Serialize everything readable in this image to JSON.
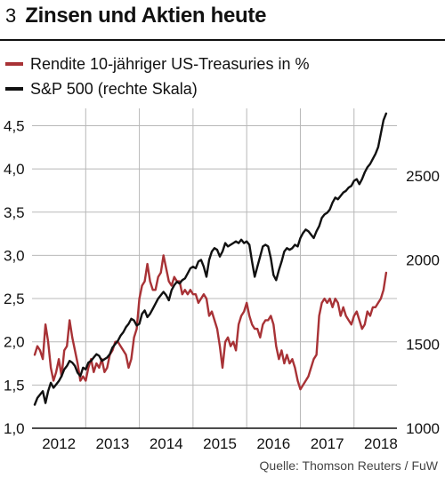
{
  "header": {
    "number": "3",
    "title": "Zinsen und Aktien heute"
  },
  "colors": {
    "yield": "#a83236",
    "sp500": "#111111",
    "grid": "#b8b8b8"
  },
  "source": "Quelle: Thomson Reuters / FuW",
  "chart_data": {
    "type": "line",
    "grid": true,
    "legend_placement": "top-left",
    "left_axis": {
      "min": 1.0,
      "max": 4.7,
      "ticks": [
        "1,0",
        "1,5",
        "2,0",
        "2,5",
        "3,0",
        "3,5",
        "4,0",
        "4,5"
      ],
      "tick_values": [
        1.0,
        1.5,
        2.0,
        2.5,
        3.0,
        3.5,
        4.0,
        4.5
      ]
    },
    "right_axis": {
      "min": 1000,
      "max": 2900,
      "ticks": [
        "1000",
        "1500",
        "2000",
        "2500"
      ],
      "tick_values": [
        1000,
        1500,
        2000,
        2500
      ]
    },
    "x_axis": {
      "min": 2011.5,
      "max": 2018.3,
      "labels": [
        "2012",
        "2013",
        "2014",
        "2015",
        "2016",
        "2017",
        "2018"
      ],
      "label_years": [
        2012,
        2013,
        2014,
        2015,
        2016,
        2017,
        2018
      ]
    },
    "series": [
      {
        "name": "Rendite 10-jähriger US-Treasuries in %",
        "axis": "left",
        "x": [
          2011.55,
          2011.6,
          2011.65,
          2011.7,
          2011.75,
          2011.8,
          2011.85,
          2011.9,
          2011.95,
          2012.0,
          2012.05,
          2012.1,
          2012.15,
          2012.2,
          2012.25,
          2012.3,
          2012.35,
          2012.4,
          2012.45,
          2012.5,
          2012.55,
          2012.6,
          2012.65,
          2012.7,
          2012.75,
          2012.8,
          2012.85,
          2012.9,
          2012.95,
          2013.0,
          2013.05,
          2013.1,
          2013.15,
          2013.2,
          2013.25,
          2013.3,
          2013.35,
          2013.4,
          2013.45,
          2013.5,
          2013.55,
          2013.6,
          2013.65,
          2013.7,
          2013.75,
          2013.8,
          2013.85,
          2013.9,
          2013.95,
          2014.0,
          2014.05,
          2014.1,
          2014.15,
          2014.2,
          2014.25,
          2014.3,
          2014.35,
          2014.4,
          2014.45,
          2014.5,
          2014.55,
          2014.6,
          2014.65,
          2014.7,
          2014.75,
          2014.8,
          2014.85,
          2014.9,
          2014.95,
          2015.0,
          2015.05,
          2015.1,
          2015.15,
          2015.2,
          2015.25,
          2015.3,
          2015.35,
          2015.4,
          2015.45,
          2015.5,
          2015.55,
          2015.6,
          2015.65,
          2015.7,
          2015.75,
          2015.8,
          2015.85,
          2015.9,
          2015.95,
          2016.0,
          2016.05,
          2016.1,
          2016.15,
          2016.2,
          2016.25,
          2016.3,
          2016.35,
          2016.4,
          2016.45,
          2016.5,
          2016.55,
          2016.6,
          2016.65,
          2016.7,
          2016.75,
          2016.8,
          2016.85,
          2016.9,
          2016.95,
          2017.0,
          2017.05,
          2017.1,
          2017.15,
          2017.2,
          2017.25,
          2017.3,
          2017.35,
          2017.4,
          2017.45,
          2017.5,
          2017.55,
          2017.6,
          2017.65,
          2017.7,
          2017.75,
          2017.8,
          2017.85,
          2017.9,
          2017.95,
          2018.0,
          2018.05,
          2018.1
        ],
        "values": [
          1.85,
          1.95,
          1.9,
          1.8,
          2.2,
          2.0,
          1.7,
          1.55,
          1.65,
          1.8,
          1.6,
          1.9,
          1.95,
          2.25,
          2.05,
          1.9,
          1.75,
          1.55,
          1.6,
          1.55,
          1.7,
          1.8,
          1.65,
          1.75,
          1.7,
          1.8,
          1.65,
          1.7,
          1.85,
          1.9,
          2.0,
          2.0,
          1.95,
          1.9,
          1.85,
          1.7,
          1.8,
          2.05,
          2.15,
          2.5,
          2.65,
          2.7,
          2.9,
          2.7,
          2.6,
          2.6,
          2.75,
          2.8,
          3.0,
          2.85,
          2.7,
          2.65,
          2.75,
          2.7,
          2.7,
          2.55,
          2.6,
          2.55,
          2.6,
          2.55,
          2.55,
          2.45,
          2.5,
          2.55,
          2.5,
          2.3,
          2.35,
          2.25,
          2.15,
          1.95,
          1.7,
          2.0,
          2.05,
          1.95,
          2.0,
          1.9,
          2.2,
          2.3,
          2.35,
          2.45,
          2.3,
          2.2,
          2.15,
          2.15,
          2.05,
          2.2,
          2.25,
          2.25,
          2.3,
          2.2,
          1.95,
          1.8,
          1.9,
          1.75,
          1.85,
          1.75,
          1.8,
          1.7,
          1.55,
          1.45,
          1.5,
          1.55,
          1.6,
          1.7,
          1.8,
          1.85,
          2.3,
          2.45,
          2.5,
          2.45,
          2.5,
          2.4,
          2.5,
          2.45,
          2.3,
          2.4,
          2.3,
          2.25,
          2.2,
          2.3,
          2.35,
          2.25,
          2.15,
          2.2,
          2.35,
          2.3,
          2.4,
          2.4,
          2.45,
          2.5,
          2.6,
          2.8
        ],
        "color": "#a83236"
      },
      {
        "name": "S&P 500 (rechte Skala)",
        "axis": "right",
        "x": [
          2011.55,
          2011.6,
          2011.65,
          2011.7,
          2011.75,
          2011.8,
          2011.85,
          2011.9,
          2011.95,
          2012.0,
          2012.05,
          2012.1,
          2012.15,
          2012.2,
          2012.25,
          2012.3,
          2012.35,
          2012.4,
          2012.45,
          2012.5,
          2012.55,
          2012.6,
          2012.65,
          2012.7,
          2012.75,
          2012.8,
          2012.85,
          2012.9,
          2012.95,
          2013.0,
          2013.05,
          2013.1,
          2013.15,
          2013.2,
          2013.25,
          2013.3,
          2013.35,
          2013.4,
          2013.45,
          2013.5,
          2013.55,
          2013.6,
          2013.65,
          2013.7,
          2013.75,
          2013.8,
          2013.85,
          2013.9,
          2013.95,
          2014.0,
          2014.05,
          2014.1,
          2014.15,
          2014.2,
          2014.25,
          2014.3,
          2014.35,
          2014.4,
          2014.45,
          2014.5,
          2014.55,
          2014.6,
          2014.65,
          2014.7,
          2014.75,
          2014.8,
          2014.85,
          2014.9,
          2014.95,
          2015.0,
          2015.05,
          2015.1,
          2015.15,
          2015.2,
          2015.25,
          2015.3,
          2015.35,
          2015.4,
          2015.45,
          2015.5,
          2015.55,
          2015.6,
          2015.65,
          2015.7,
          2015.75,
          2015.8,
          2015.85,
          2015.9,
          2015.95,
          2016.0,
          2016.05,
          2016.1,
          2016.15,
          2016.2,
          2016.25,
          2016.3,
          2016.35,
          2016.4,
          2016.45,
          2016.5,
          2016.55,
          2016.6,
          2016.65,
          2016.7,
          2016.75,
          2016.8,
          2016.85,
          2016.9,
          2016.95,
          2017.0,
          2017.05,
          2017.1,
          2017.15,
          2017.2,
          2017.25,
          2017.3,
          2017.35,
          2017.4,
          2017.45,
          2017.5,
          2017.55,
          2017.6,
          2017.65,
          2017.7,
          2017.75,
          2017.8,
          2017.85,
          2017.9,
          2017.95,
          2018.0,
          2018.05,
          2018.1
        ],
        "values": [
          1140,
          1180,
          1200,
          1220,
          1150,
          1220,
          1270,
          1240,
          1260,
          1280,
          1310,
          1350,
          1370,
          1400,
          1390,
          1370,
          1330,
          1310,
          1360,
          1350,
          1390,
          1400,
          1420,
          1440,
          1430,
          1400,
          1410,
          1420,
          1440,
          1480,
          1500,
          1520,
          1550,
          1570,
          1600,
          1620,
          1650,
          1640,
          1610,
          1620,
          1680,
          1700,
          1660,
          1680,
          1710,
          1740,
          1770,
          1790,
          1810,
          1790,
          1760,
          1820,
          1850,
          1870,
          1860,
          1880,
          1890,
          1920,
          1950,
          1960,
          1950,
          1990,
          2000,
          1960,
          1900,
          2000,
          2050,
          2070,
          2060,
          2020,
          2050,
          2100,
          2080,
          2090,
          2100,
          2110,
          2100,
          2120,
          2100,
          2110,
          2090,
          1990,
          1900,
          1960,
          2020,
          2080,
          2090,
          2080,
          2010,
          1910,
          1880,
          1940,
          1990,
          2050,
          2070,
          2060,
          2070,
          2090,
          2080,
          2130,
          2160,
          2180,
          2170,
          2150,
          2130,
          2170,
          2200,
          2250,
          2270,
          2280,
          2300,
          2340,
          2370,
          2360,
          2380,
          2400,
          2410,
          2430,
          2440,
          2470,
          2480,
          2450,
          2480,
          2520,
          2550,
          2570,
          2600,
          2630,
          2670,
          2750,
          2830,
          2870
        ],
        "color": "#111111"
      }
    ]
  }
}
